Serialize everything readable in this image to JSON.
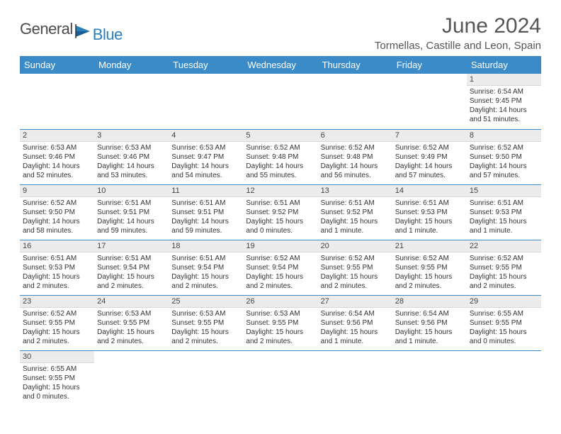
{
  "logo": {
    "text1": "General",
    "text2": "Blue"
  },
  "title": "June 2024",
  "location": "Tormellas, Castille and Leon, Spain",
  "colors": {
    "header_bg": "#3b8bc8",
    "header_fg": "#ffffff",
    "daynum_bg": "#ececec",
    "row_border": "#3b8bc8",
    "logo_blue": "#2d7fb8",
    "text_gray": "#555555"
  },
  "weekdays": [
    "Sunday",
    "Monday",
    "Tuesday",
    "Wednesday",
    "Thursday",
    "Friday",
    "Saturday"
  ],
  "weeks": [
    [
      null,
      null,
      null,
      null,
      null,
      null,
      {
        "n": "1",
        "sr": "6:54 AM",
        "ss": "9:45 PM",
        "dl": "14 hours and 51 minutes."
      }
    ],
    [
      {
        "n": "2",
        "sr": "6:53 AM",
        "ss": "9:46 PM",
        "dl": "14 hours and 52 minutes."
      },
      {
        "n": "3",
        "sr": "6:53 AM",
        "ss": "9:46 PM",
        "dl": "14 hours and 53 minutes."
      },
      {
        "n": "4",
        "sr": "6:53 AM",
        "ss": "9:47 PM",
        "dl": "14 hours and 54 minutes."
      },
      {
        "n": "5",
        "sr": "6:52 AM",
        "ss": "9:48 PM",
        "dl": "14 hours and 55 minutes."
      },
      {
        "n": "6",
        "sr": "6:52 AM",
        "ss": "9:48 PM",
        "dl": "14 hours and 56 minutes."
      },
      {
        "n": "7",
        "sr": "6:52 AM",
        "ss": "9:49 PM",
        "dl": "14 hours and 57 minutes."
      },
      {
        "n": "8",
        "sr": "6:52 AM",
        "ss": "9:50 PM",
        "dl": "14 hours and 57 minutes."
      }
    ],
    [
      {
        "n": "9",
        "sr": "6:52 AM",
        "ss": "9:50 PM",
        "dl": "14 hours and 58 minutes."
      },
      {
        "n": "10",
        "sr": "6:51 AM",
        "ss": "9:51 PM",
        "dl": "14 hours and 59 minutes."
      },
      {
        "n": "11",
        "sr": "6:51 AM",
        "ss": "9:51 PM",
        "dl": "14 hours and 59 minutes."
      },
      {
        "n": "12",
        "sr": "6:51 AM",
        "ss": "9:52 PM",
        "dl": "15 hours and 0 minutes."
      },
      {
        "n": "13",
        "sr": "6:51 AM",
        "ss": "9:52 PM",
        "dl": "15 hours and 1 minute."
      },
      {
        "n": "14",
        "sr": "6:51 AM",
        "ss": "9:53 PM",
        "dl": "15 hours and 1 minute."
      },
      {
        "n": "15",
        "sr": "6:51 AM",
        "ss": "9:53 PM",
        "dl": "15 hours and 1 minute."
      }
    ],
    [
      {
        "n": "16",
        "sr": "6:51 AM",
        "ss": "9:53 PM",
        "dl": "15 hours and 2 minutes."
      },
      {
        "n": "17",
        "sr": "6:51 AM",
        "ss": "9:54 PM",
        "dl": "15 hours and 2 minutes."
      },
      {
        "n": "18",
        "sr": "6:51 AM",
        "ss": "9:54 PM",
        "dl": "15 hours and 2 minutes."
      },
      {
        "n": "19",
        "sr": "6:52 AM",
        "ss": "9:54 PM",
        "dl": "15 hours and 2 minutes."
      },
      {
        "n": "20",
        "sr": "6:52 AM",
        "ss": "9:55 PM",
        "dl": "15 hours and 2 minutes."
      },
      {
        "n": "21",
        "sr": "6:52 AM",
        "ss": "9:55 PM",
        "dl": "15 hours and 2 minutes."
      },
      {
        "n": "22",
        "sr": "6:52 AM",
        "ss": "9:55 PM",
        "dl": "15 hours and 2 minutes."
      }
    ],
    [
      {
        "n": "23",
        "sr": "6:52 AM",
        "ss": "9:55 PM",
        "dl": "15 hours and 2 minutes."
      },
      {
        "n": "24",
        "sr": "6:53 AM",
        "ss": "9:55 PM",
        "dl": "15 hours and 2 minutes."
      },
      {
        "n": "25",
        "sr": "6:53 AM",
        "ss": "9:55 PM",
        "dl": "15 hours and 2 minutes."
      },
      {
        "n": "26",
        "sr": "6:53 AM",
        "ss": "9:55 PM",
        "dl": "15 hours and 2 minutes."
      },
      {
        "n": "27",
        "sr": "6:54 AM",
        "ss": "9:56 PM",
        "dl": "15 hours and 1 minute."
      },
      {
        "n": "28",
        "sr": "6:54 AM",
        "ss": "9:56 PM",
        "dl": "15 hours and 1 minute."
      },
      {
        "n": "29",
        "sr": "6:55 AM",
        "ss": "9:55 PM",
        "dl": "15 hours and 0 minutes."
      }
    ],
    [
      {
        "n": "30",
        "sr": "6:55 AM",
        "ss": "9:55 PM",
        "dl": "15 hours and 0 minutes."
      },
      null,
      null,
      null,
      null,
      null,
      null
    ]
  ],
  "labels": {
    "sunrise": "Sunrise: ",
    "sunset": "Sunset: ",
    "daylight": "Daylight: "
  }
}
